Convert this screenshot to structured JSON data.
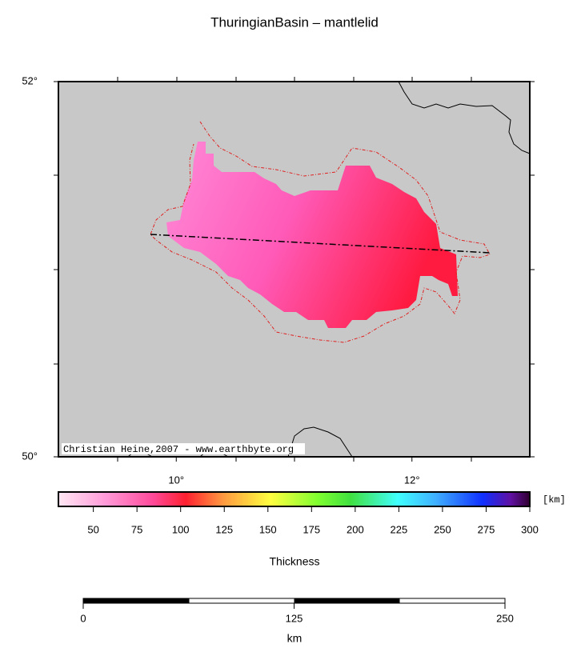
{
  "map": {
    "title": "ThuringianBasin – mantlelid",
    "lonlim": [
      9,
      13
    ],
    "latlim": [
      50,
      52
    ],
    "lon_ticks": [
      {
        "value": 10,
        "label": "10°"
      },
      {
        "value": 12,
        "label": "12°"
      }
    ],
    "lat_ticks": [
      {
        "value": 50,
        "label": "50°"
      },
      {
        "value": 52,
        "label": "52°"
      }
    ],
    "credit": "Christian Heine,2007 - www.earthbyte.org"
  },
  "colorbar": {
    "unit": "[km]",
    "label": "Thickness",
    "lim": [
      30,
      300
    ],
    "ticks": [
      50,
      75,
      100,
      125,
      150,
      175,
      200,
      225,
      250,
      275,
      300
    ]
  },
  "scalebar": {
    "lim": [
      0,
      250
    ],
    "ticks": [
      0,
      125,
      250
    ],
    "unit": "km"
  }
}
